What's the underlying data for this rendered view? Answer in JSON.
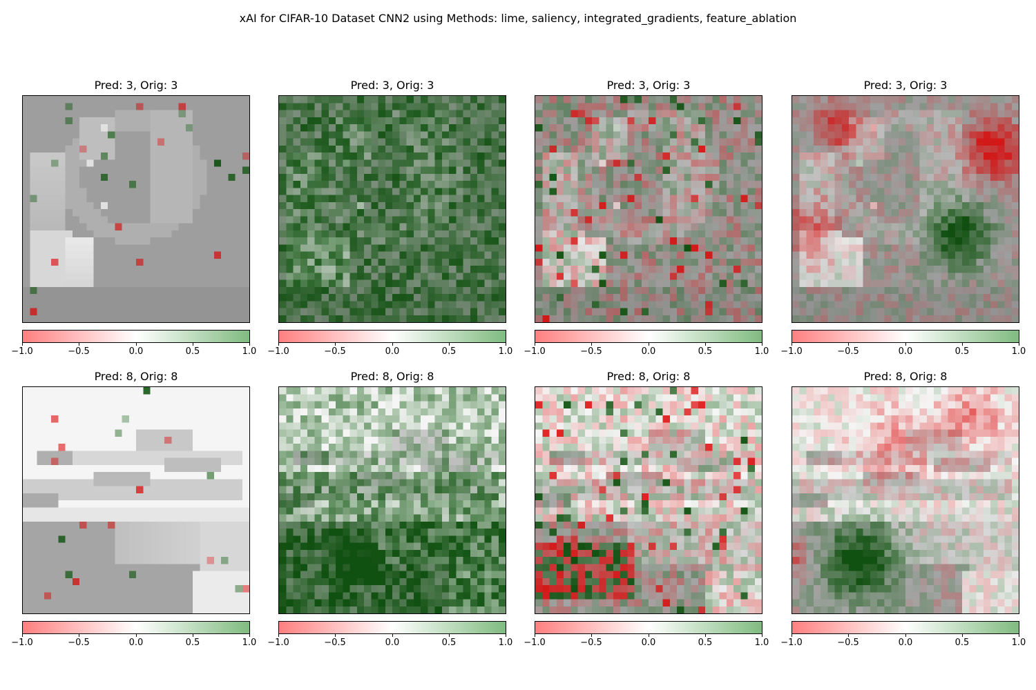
{
  "suptitle": "xAI for CIFAR-10 Dataset CNN2 using Methods: lime, saliency, integrated_gradients, feature_ablation",
  "chart_data": {
    "type": "heatmap",
    "title": "xAI for CIFAR-10 Dataset CNN2 using Methods: lime, saliency, integrated_gradients, feature_ablation",
    "grid": "32x32",
    "colorbar": {
      "range": [
        -1.0,
        1.0
      ],
      "ticks": [
        "−1.0",
        "−0.5",
        "0.0",
        "0.5",
        "1.0"
      ],
      "tick_values": [
        -1.0,
        -0.5,
        0.0,
        0.5,
        1.0
      ],
      "colormap": [
        "#ff8080",
        "#ffffff",
        "#80bb80"
      ]
    },
    "rows": [
      {
        "image": "sample-3",
        "panels": [
          {
            "title": "Pred: 3, Orig: 3",
            "pattern": "sparse"
          },
          {
            "title": "Pred: 3, Orig: 3",
            "pattern": "dense-green"
          },
          {
            "title": "Pred: 3, Orig: 3",
            "pattern": "mixed"
          },
          {
            "title": "Pred: 3, Orig: 3",
            "pattern": "blobs"
          }
        ]
      },
      {
        "image": "sample-8",
        "panels": [
          {
            "title": "Pred: 8, Orig: 8",
            "pattern": "sparse"
          },
          {
            "title": "Pred: 8, Orig: 8",
            "pattern": "dense-green"
          },
          {
            "title": "Pred: 8, Orig: 8",
            "pattern": "mixed"
          },
          {
            "title": "Pred: 8, Orig: 8",
            "pattern": "blobs"
          }
        ]
      }
    ]
  }
}
